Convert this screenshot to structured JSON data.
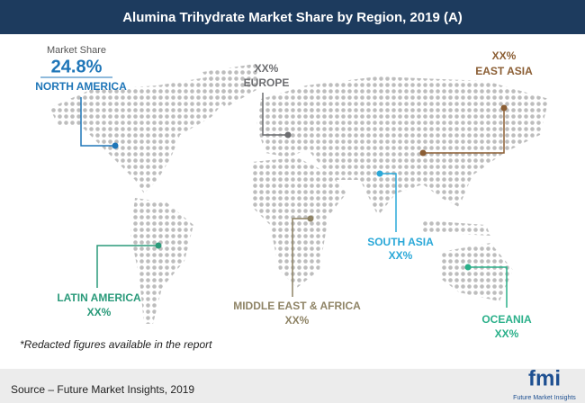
{
  "header": {
    "title": "Alumina Trihydrate Market Share by Region, 2019 (A)"
  },
  "market_share_label": "Market Share",
  "regions": [
    {
      "name": "NORTH AMERICA",
      "value": "24.8%"
    },
    {
      "name": "EUROPE",
      "value": "XX%"
    },
    {
      "name": "EAST ASIA",
      "value": "XX%"
    },
    {
      "name": "SOUTH ASIA",
      "value": "XX%"
    },
    {
      "name": "MIDDLE EAST & AFRICA",
      "value": "XX%"
    },
    {
      "name": "LATIN AMERICA",
      "value": "XX%"
    },
    {
      "name": "OCEANIA",
      "value": "XX%"
    }
  ],
  "footnote": "*Redacted figures available in the report",
  "source": "Source – Future Market Insights, 2019",
  "logo": {
    "mark": "fmi",
    "name": "Future Market Insights"
  }
}
